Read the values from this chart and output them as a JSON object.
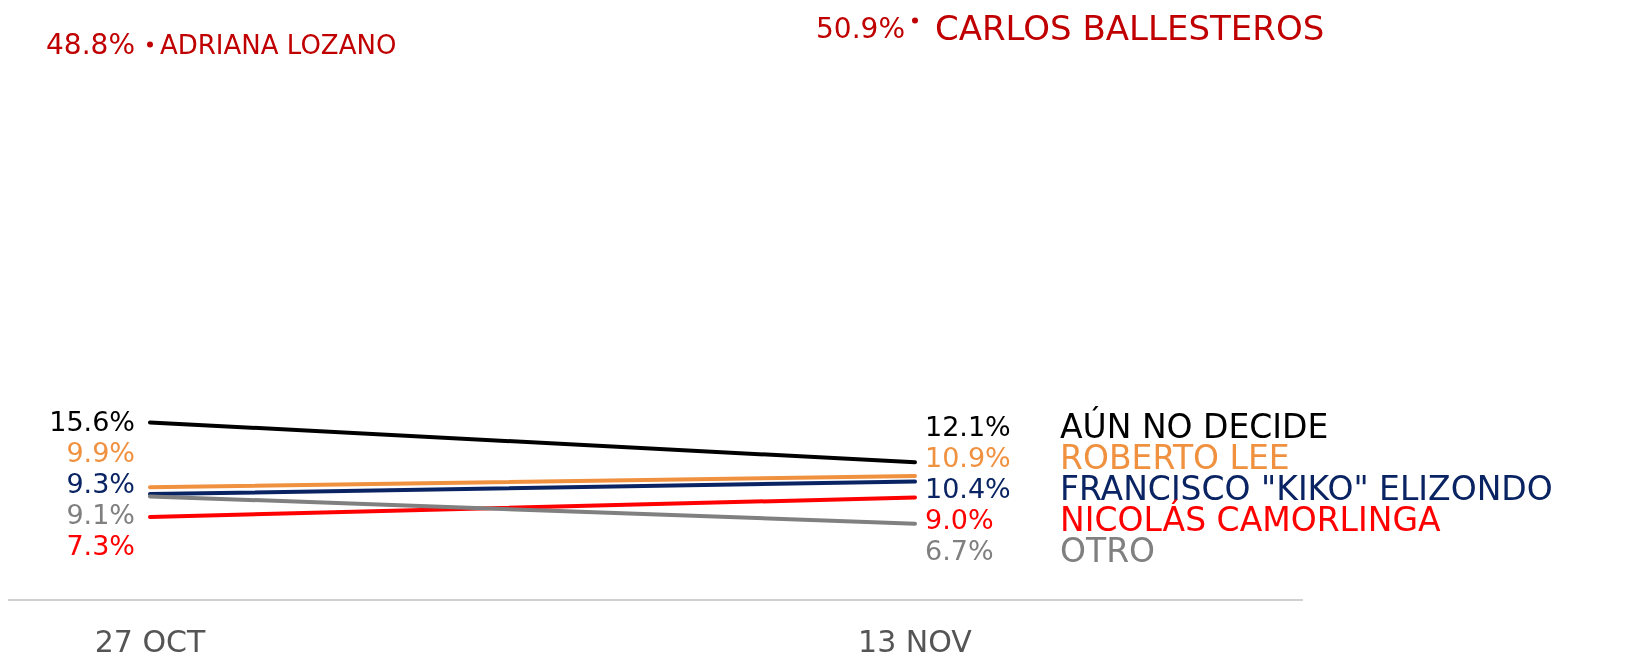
{
  "chart_data": {
    "type": "line",
    "categories": [
      "27 OCT",
      "13 NOV"
    ],
    "ylim": [
      0,
      52
    ],
    "tick_labels": "x",
    "line_style": "solid",
    "series": [
      {
        "name": "ADRIANA LOZANO",
        "color": "#c00000",
        "marker": "circle",
        "values": [
          48.8,
          null
        ],
        "value_labels": [
          "48.8%",
          null
        ]
      },
      {
        "name": "CARLOS BALLESTEROS",
        "color": "#c00000",
        "marker": "circle",
        "values": [
          null,
          50.9
        ],
        "value_labels": [
          null,
          "50.9%"
        ]
      },
      {
        "name": "AÚN NO DECIDE",
        "color": "#000000",
        "values": [
          15.6,
          12.1
        ],
        "value_labels": [
          "15.6%",
          "12.1%"
        ]
      },
      {
        "name": "ROBERTO LEE",
        "color": "#f0913f",
        "values": [
          9.9,
          10.9
        ],
        "value_labels": [
          "9.9%",
          "10.9%"
        ]
      },
      {
        "name": "FRANCISCO \"KIKO\" ELIZONDO",
        "color": "#0a2463",
        "values": [
          9.3,
          10.4
        ],
        "value_labels": [
          "9.3%",
          "10.4%"
        ]
      },
      {
        "name": "NICOLÁS CAMORLINGA",
        "color": "#ff0000",
        "values": [
          7.3,
          9.0
        ],
        "value_labels": [
          "7.3%",
          "9.0%"
        ]
      },
      {
        "name": "OTRO",
        "color": "#808080",
        "values": [
          9.1,
          6.7
        ],
        "value_labels": [
          "9.1%",
          "6.7%"
        ]
      }
    ]
  }
}
